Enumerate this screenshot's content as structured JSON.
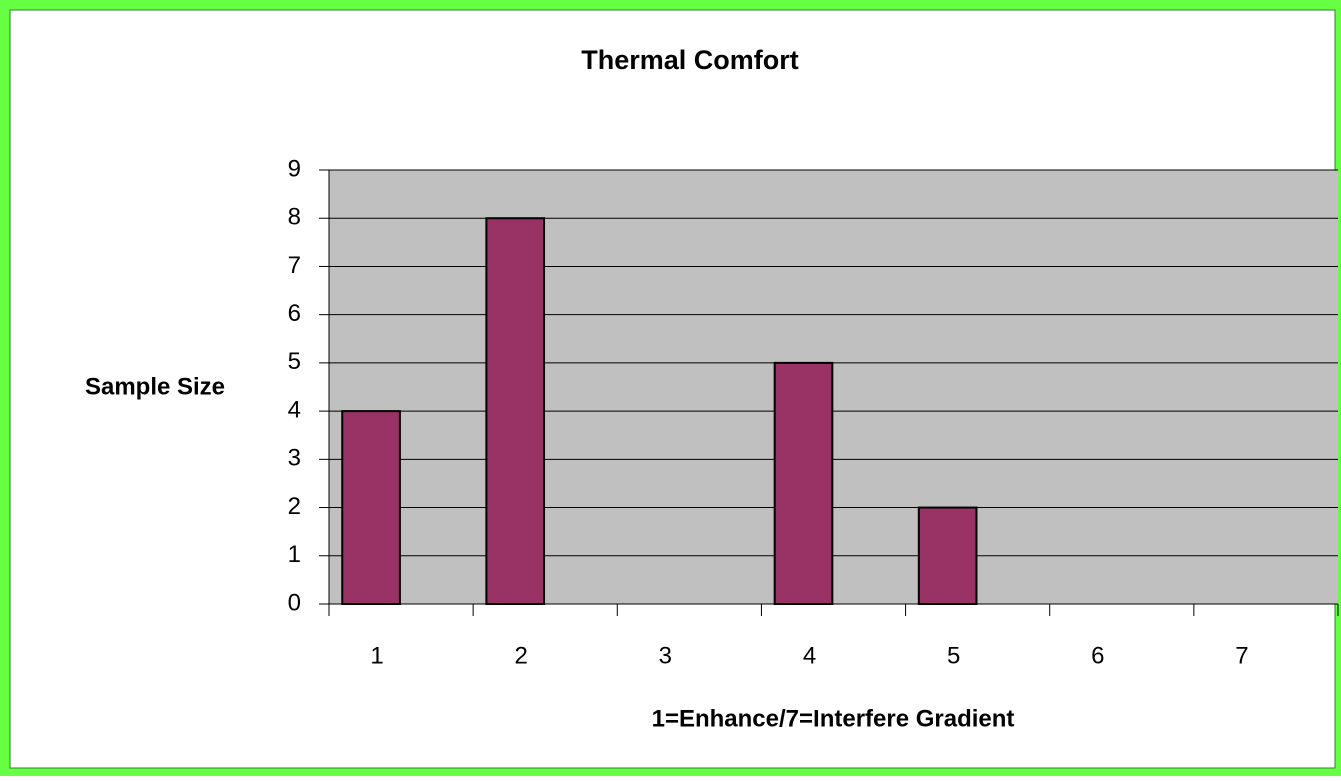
{
  "chart_data": {
    "type": "bar",
    "title": "Thermal Comfort",
    "x_label": "1=Enhance/7=Interfere Gradient",
    "y_label": "Sample Size",
    "categories": [
      "1",
      "2",
      "3",
      "4",
      "5",
      "6",
      "7"
    ],
    "values": [
      4,
      8,
      0,
      5,
      2,
      0,
      0
    ],
    "color": "#993366",
    "ylim": [
      0,
      9
    ],
    "yticks": [
      0,
      1,
      2,
      3,
      4,
      5,
      6,
      7,
      8,
      9
    ],
    "grid": true
  }
}
